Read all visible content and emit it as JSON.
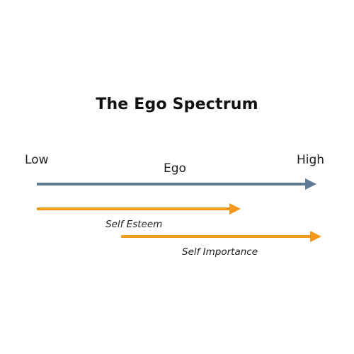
{
  "diagram": {
    "title": "The Ego Spectrum",
    "scale": {
      "low_label": "Low",
      "high_label": "High"
    },
    "arrows": [
      {
        "key": "ego",
        "label": "Ego",
        "color": "#5f7a93"
      },
      {
        "key": "self-esteem",
        "label": "Self Esteem",
        "color": "#f39a1e"
      },
      {
        "key": "self-importance",
        "label": "Self Importance",
        "color": "#f39a1e"
      }
    ]
  }
}
